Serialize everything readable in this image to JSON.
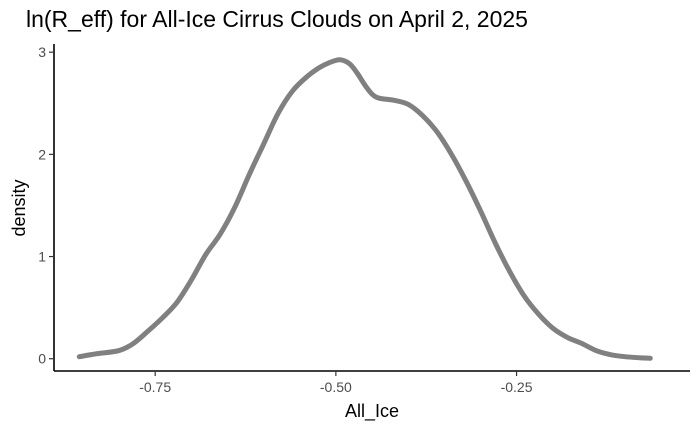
{
  "chart_data": {
    "type": "line",
    "title": "ln(R_eff) for All-Ice Cirrus Clouds on April 2, 2025",
    "xlabel": "All_Ice",
    "ylabel": "density",
    "xlim": [
      -0.89,
      -0.01
    ],
    "ylim": [
      -0.12,
      3.08
    ],
    "x_ticks": [
      -0.75,
      -0.5,
      -0.25
    ],
    "x_tick_labels": [
      "-0.75",
      "-0.50",
      "-0.25"
    ],
    "y_ticks": [
      0,
      1,
      2,
      3
    ],
    "y_tick_labels": [
      "0",
      "1",
      "2",
      "3"
    ],
    "grid": false,
    "legend": "none",
    "series": [
      {
        "color": "#808080",
        "x": [
          -0.855,
          -0.83,
          -0.8,
          -0.78,
          -0.76,
          -0.74,
          -0.72,
          -0.7,
          -0.68,
          -0.66,
          -0.64,
          -0.62,
          -0.6,
          -0.58,
          -0.56,
          -0.54,
          -0.52,
          -0.5,
          -0.49,
          -0.48,
          -0.47,
          -0.46,
          -0.45,
          -0.44,
          -0.42,
          -0.4,
          -0.38,
          -0.36,
          -0.34,
          -0.32,
          -0.3,
          -0.28,
          -0.26,
          -0.24,
          -0.22,
          -0.2,
          -0.18,
          -0.16,
          -0.14,
          -0.12,
          -0.1,
          -0.08,
          -0.065
        ],
        "values": [
          0.02,
          0.05,
          0.08,
          0.15,
          0.27,
          0.4,
          0.55,
          0.77,
          1.02,
          1.22,
          1.48,
          1.8,
          2.1,
          2.4,
          2.62,
          2.76,
          2.86,
          2.92,
          2.92,
          2.88,
          2.79,
          2.68,
          2.59,
          2.55,
          2.53,
          2.49,
          2.38,
          2.22,
          2.0,
          1.74,
          1.45,
          1.14,
          0.86,
          0.62,
          0.44,
          0.3,
          0.21,
          0.15,
          0.08,
          0.04,
          0.02,
          0.01,
          0.005
        ]
      }
    ]
  }
}
